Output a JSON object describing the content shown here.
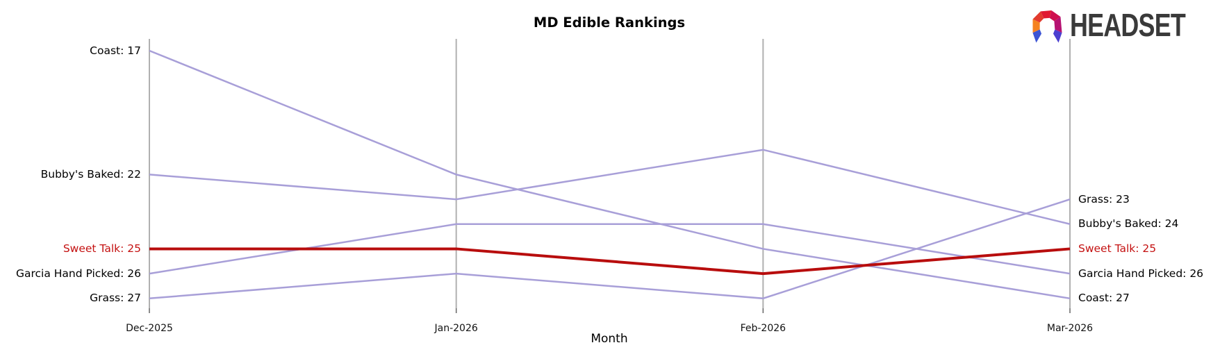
{
  "header": {
    "title": "MD Edible Rankings"
  },
  "logo": {
    "text": "HEADSET",
    "mark_colors": {
      "orange": "#f5821f",
      "red": "#e23b2e",
      "bright_red": "#e01931",
      "crimson": "#cf0f4e",
      "magenta": "#b61372",
      "blue_left": "#3d55d4",
      "indigo_right": "#4b3fd0"
    },
    "text_color": "#3a3a3a"
  },
  "colors": {
    "background": "#ffffff",
    "line_default": "#a89fd8",
    "line_highlight": "#b80d0d",
    "label_highlight": "#c41111",
    "label_default": "#000000",
    "gridline": "#b0b0b0",
    "tick": "#666666",
    "tick_label": "#111111"
  },
  "chart_data": {
    "type": "line",
    "variant": "bump-ranking",
    "title": "MD Edible Rankings",
    "xlabel": "Month",
    "categories": [
      "Dec-2025",
      "Jan-2026",
      "Feb-2026",
      "Mar-2026"
    ],
    "y_axis": {
      "inverted": true,
      "top_rank_shown": 17,
      "bottom_rank_shown": 27,
      "y_ticks_hidden": true,
      "vertical_gridlines": true
    },
    "label_format": "{name}: {value}",
    "series": [
      {
        "name": "Coast",
        "values": [
          17,
          22,
          25,
          27
        ],
        "highlight": false
      },
      {
        "name": "Bubby's Baked",
        "values": [
          22,
          23,
          21,
          24
        ],
        "highlight": false
      },
      {
        "name": "Garcia Hand Picked",
        "values": [
          26,
          24,
          24,
          26
        ],
        "highlight": false
      },
      {
        "name": "Grass",
        "values": [
          27,
          26,
          27,
          23
        ],
        "highlight": false
      },
      {
        "name": "Sweet Talk",
        "values": [
          25,
          25,
          26,
          25
        ],
        "highlight": true
      }
    ],
    "left_labels": [
      "Coast: 17",
      "Bubby's Baked: 22",
      "Sweet Talk: 25",
      "Garcia Hand Picked: 26",
      "Grass: 27"
    ],
    "right_labels": [
      "Grass: 23",
      "Bubby's Baked: 24",
      "Sweet Talk: 25",
      "Garcia Hand Picked: 26",
      "Coast: 27"
    ]
  }
}
